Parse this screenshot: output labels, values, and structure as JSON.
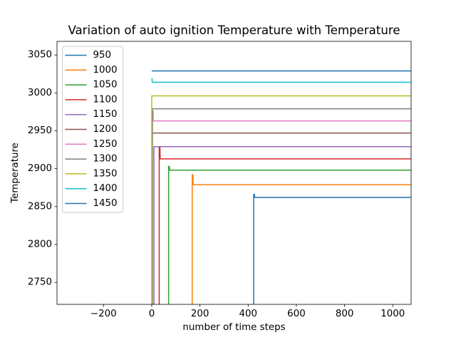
{
  "chart_data": {
    "type": "line",
    "title": "Variation of auto ignition Temperature with Temperature",
    "xlabel": "number of time steps",
    "ylabel": "Temperature",
    "xlim": [
      -393,
      1076
    ],
    "ylim": [
      2721,
      3068
    ],
    "xticks": [
      -200,
      0,
      200,
      400,
      600,
      800,
      1000
    ],
    "yticks": [
      2750,
      2800,
      2850,
      2900,
      2950,
      3000,
      3050
    ],
    "grid": false,
    "legend_position": "upper left",
    "line_width": 1.5,
    "spine_color": "#000000",
    "legend_border_color": "#cccccc",
    "series": [
      {
        "name": "950",
        "color": "#1f77b4",
        "ignition_step": 423,
        "peak_temp": 2866,
        "final_temp": 2862,
        "points": [
          [
            423,
            2721
          ],
          [
            423,
            2866
          ],
          [
            426,
            2866
          ],
          [
            427,
            2862
          ],
          [
            1076,
            2862
          ]
        ]
      },
      {
        "name": "1000",
        "color": "#ff7f0e",
        "ignition_step": 168,
        "peak_temp": 2892,
        "final_temp": 2879,
        "points": [
          [
            168,
            2721
          ],
          [
            168,
            2892
          ],
          [
            171,
            2892
          ],
          [
            172,
            2879
          ],
          [
            1076,
            2879
          ]
        ]
      },
      {
        "name": "1050",
        "color": "#2ca02c",
        "ignition_step": 70,
        "peak_temp": 2903,
        "final_temp": 2898,
        "points": [
          [
            70,
            2721
          ],
          [
            70,
            2903
          ],
          [
            73,
            2903
          ],
          [
            74,
            2898
          ],
          [
            1076,
            2898
          ]
        ]
      },
      {
        "name": "1100",
        "color": "#d62728",
        "ignition_step": 31,
        "peak_temp": 2928,
        "final_temp": 2913,
        "points": [
          [
            31,
            2721
          ],
          [
            31,
            2928
          ],
          [
            34,
            2928
          ],
          [
            35,
            2913
          ],
          [
            1076,
            2913
          ]
        ]
      },
      {
        "name": "1150",
        "color": "#9467bd",
        "ignition_step": 9,
        "peak_temp": 2929,
        "final_temp": 2929,
        "points": [
          [
            9,
            2721
          ],
          [
            9,
            2929
          ],
          [
            1076,
            2929
          ]
        ]
      },
      {
        "name": "1200",
        "color": "#8c564b",
        "ignition_step": 1,
        "peak_temp": 2947,
        "final_temp": 2947,
        "points": [
          [
            1,
            2721
          ],
          [
            1,
            2947
          ],
          [
            1076,
            2947
          ]
        ]
      },
      {
        "name": "1250",
        "color": "#e377c2",
        "ignition_step": 2,
        "peak_temp": 2976,
        "final_temp": 2963,
        "points": [
          [
            2,
            2721
          ],
          [
            2,
            2963
          ],
          [
            4,
            2963
          ],
          [
            4,
            2976
          ],
          [
            6,
            2976
          ],
          [
            6,
            2963
          ],
          [
            1076,
            2963
          ]
        ]
      },
      {
        "name": "1300",
        "color": "#7f7f7f",
        "ignition_step": 3,
        "peak_temp": 2979,
        "final_temp": 2979,
        "points": [
          [
            3,
            2721
          ],
          [
            3,
            2979
          ],
          [
            1076,
            2979
          ]
        ]
      },
      {
        "name": "1350",
        "color": "#bcbd22",
        "ignition_step": 0,
        "peak_temp": 2996,
        "final_temp": 2996,
        "points": [
          [
            0,
            2721
          ],
          [
            0,
            2996
          ],
          [
            1076,
            2996
          ]
        ]
      },
      {
        "name": "1400",
        "color": "#17becf",
        "ignition_step": 0,
        "peak_temp": 3019,
        "final_temp": 3014,
        "points": [
          [
            0,
            3019
          ],
          [
            1,
            3019
          ],
          [
            2,
            3014
          ],
          [
            1076,
            3014
          ]
        ]
      },
      {
        "name": "1450",
        "color": "#1f77b4",
        "ignition_step": 0,
        "peak_temp": 3029,
        "final_temp": 3029,
        "points": [
          [
            0,
            3029
          ],
          [
            1076,
            3029
          ]
        ]
      }
    ]
  }
}
